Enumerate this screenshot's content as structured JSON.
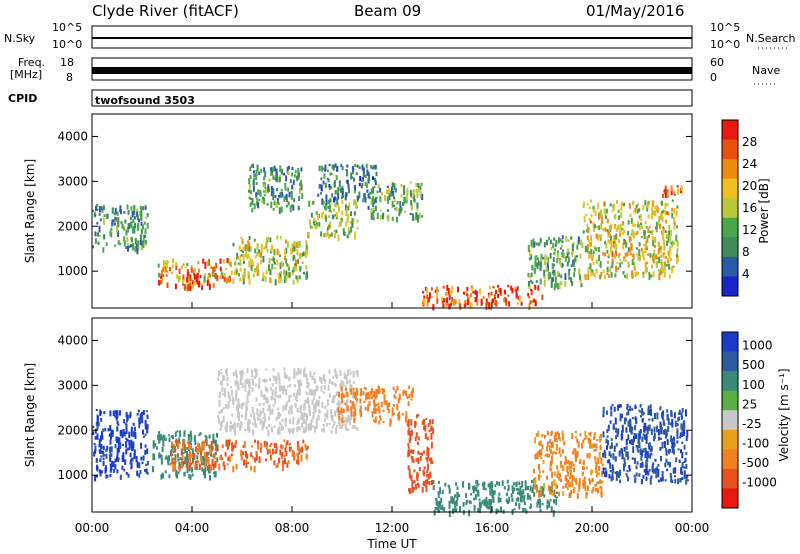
{
  "header": {
    "station": "Clyde River (fitACF)",
    "beam": "Beam 09",
    "date": "01/May/2016"
  },
  "panels": {
    "nsky": {
      "label": "N.Sky",
      "ticks": [
        "10^5",
        "10^0"
      ]
    },
    "nsearch": {
      "label": "N.Search",
      "ticks": [
        "10^5",
        "10^0"
      ]
    },
    "freq": {
      "label_line1": "Freq.",
      "label_line2": "[MHz]",
      "ticks": [
        "18",
        "8"
      ]
    },
    "nave": {
      "label": "Nave",
      "ticks": [
        "60",
        "0"
      ]
    },
    "cpid": {
      "label": "CPID",
      "value": "twofsound 3503"
    }
  },
  "colors": {
    "nsky_trace": "#000000",
    "power_scale": [
      "#1a24c8",
      "#2d5aa8",
      "#3f8c5a",
      "#4aa64a",
      "#b8c83a",
      "#f0c020",
      "#f08a10",
      "#e85010",
      "#e81a10"
    ],
    "velocity_scale": [
      "#1a3cc8",
      "#2c5aa0",
      "#3a8a78",
      "#58b040",
      "#c8c8c8",
      "#e8a020",
      "#f08020",
      "#e85020",
      "#e81a10"
    ]
  },
  "chart_data": [
    {
      "type": "heatmap",
      "title": "",
      "ylabel": "Slant Range [km]",
      "xlabel": "",
      "ylim": [
        180,
        4500
      ],
      "xlim": [
        0,
        24
      ],
      "yticks": [
        1000,
        2000,
        3000,
        4000
      ],
      "xticks": [
        0,
        4,
        8,
        12,
        16,
        20,
        24
      ],
      "colorbar": {
        "label": "Power [dB]",
        "range": [
          0,
          32
        ],
        "ticks": [
          "4",
          "8",
          "12",
          "16",
          "20",
          "24",
          "28"
        ]
      },
      "regions": [
        {
          "t0": 0.0,
          "t1": 2.2,
          "r0": 1500,
          "r1": 2500,
          "level": 10
        },
        {
          "t0": 2.6,
          "t1": 5.6,
          "r0": 700,
          "r1": 1300,
          "level": 22
        },
        {
          "t0": 3.6,
          "t1": 4.4,
          "r0": 650,
          "r1": 1000,
          "level": 28
        },
        {
          "t0": 5.6,
          "t1": 8.6,
          "r0": 800,
          "r1": 1800,
          "level": 16
        },
        {
          "t0": 6.2,
          "t1": 8.4,
          "r0": 2400,
          "r1": 3400,
          "level": 10
        },
        {
          "t0": 8.6,
          "t1": 10.6,
          "r0": 1800,
          "r1": 2600,
          "level": 14
        },
        {
          "t0": 9.0,
          "t1": 11.4,
          "r0": 2600,
          "r1": 3400,
          "level": 8
        },
        {
          "t0": 11.0,
          "t1": 13.2,
          "r0": 2200,
          "r1": 3000,
          "level": 12
        },
        {
          "t0": 13.2,
          "t1": 18.0,
          "r0": 250,
          "r1": 700,
          "level": 28
        },
        {
          "t0": 17.4,
          "t1": 19.6,
          "r0": 700,
          "r1": 1800,
          "level": 12
        },
        {
          "t0": 19.6,
          "t1": 23.4,
          "r0": 900,
          "r1": 2600,
          "level": 18
        },
        {
          "t0": 22.8,
          "t1": 23.6,
          "r0": 2700,
          "r1": 3000,
          "level": 26
        }
      ]
    },
    {
      "type": "heatmap",
      "title": "",
      "ylabel": "Slant Range [km]",
      "xlabel": "Time UT",
      "ylim": [
        180,
        4500
      ],
      "xlim": [
        0,
        24
      ],
      "yticks": [
        1000,
        2000,
        3000,
        4000
      ],
      "xticks": [
        0,
        4,
        8,
        12,
        16,
        20,
        24
      ],
      "xticklabels": [
        "00:00",
        "04:00",
        "08:00",
        "12:00",
        "16:00",
        "20:00",
        "00:00"
      ],
      "colorbar": {
        "label": "Velocity [m s⁻¹]",
        "ticks": [
          "1000",
          "500",
          "100",
          "25",
          "-25",
          "-100",
          "-500",
          "-1000"
        ]
      },
      "regions": [
        {
          "t0": 0.0,
          "t1": 2.2,
          "r0": 1000,
          "r1": 2500,
          "level": 900
        },
        {
          "t0": 2.4,
          "t1": 5.0,
          "r0": 1000,
          "r1": 2000,
          "level": 200
        },
        {
          "t0": 3.0,
          "t1": 8.6,
          "r0": 1200,
          "r1": 1800,
          "level": -300
        },
        {
          "t0": 5.0,
          "t1": 10.6,
          "r0": 2000,
          "r1": 3400,
          "level": 0
        },
        {
          "t0": 9.8,
          "t1": 12.8,
          "r0": 2200,
          "r1": 3000,
          "level": -150
        },
        {
          "t0": 12.6,
          "t1": 13.6,
          "r0": 700,
          "r1": 2400,
          "level": -400
        },
        {
          "t0": 13.6,
          "t1": 18.6,
          "r0": 200,
          "r1": 900,
          "level": 150
        },
        {
          "t0": 17.6,
          "t1": 20.4,
          "r0": 600,
          "r1": 2000,
          "level": -120
        },
        {
          "t0": 20.4,
          "t1": 23.8,
          "r0": 900,
          "r1": 2600,
          "level": 700
        }
      ]
    }
  ],
  "time_axis": {
    "ticks": [
      "00:00",
      "04:00",
      "08:00",
      "12:00",
      "16:00",
      "20:00",
      "00:00"
    ],
    "label": "Time UT"
  }
}
